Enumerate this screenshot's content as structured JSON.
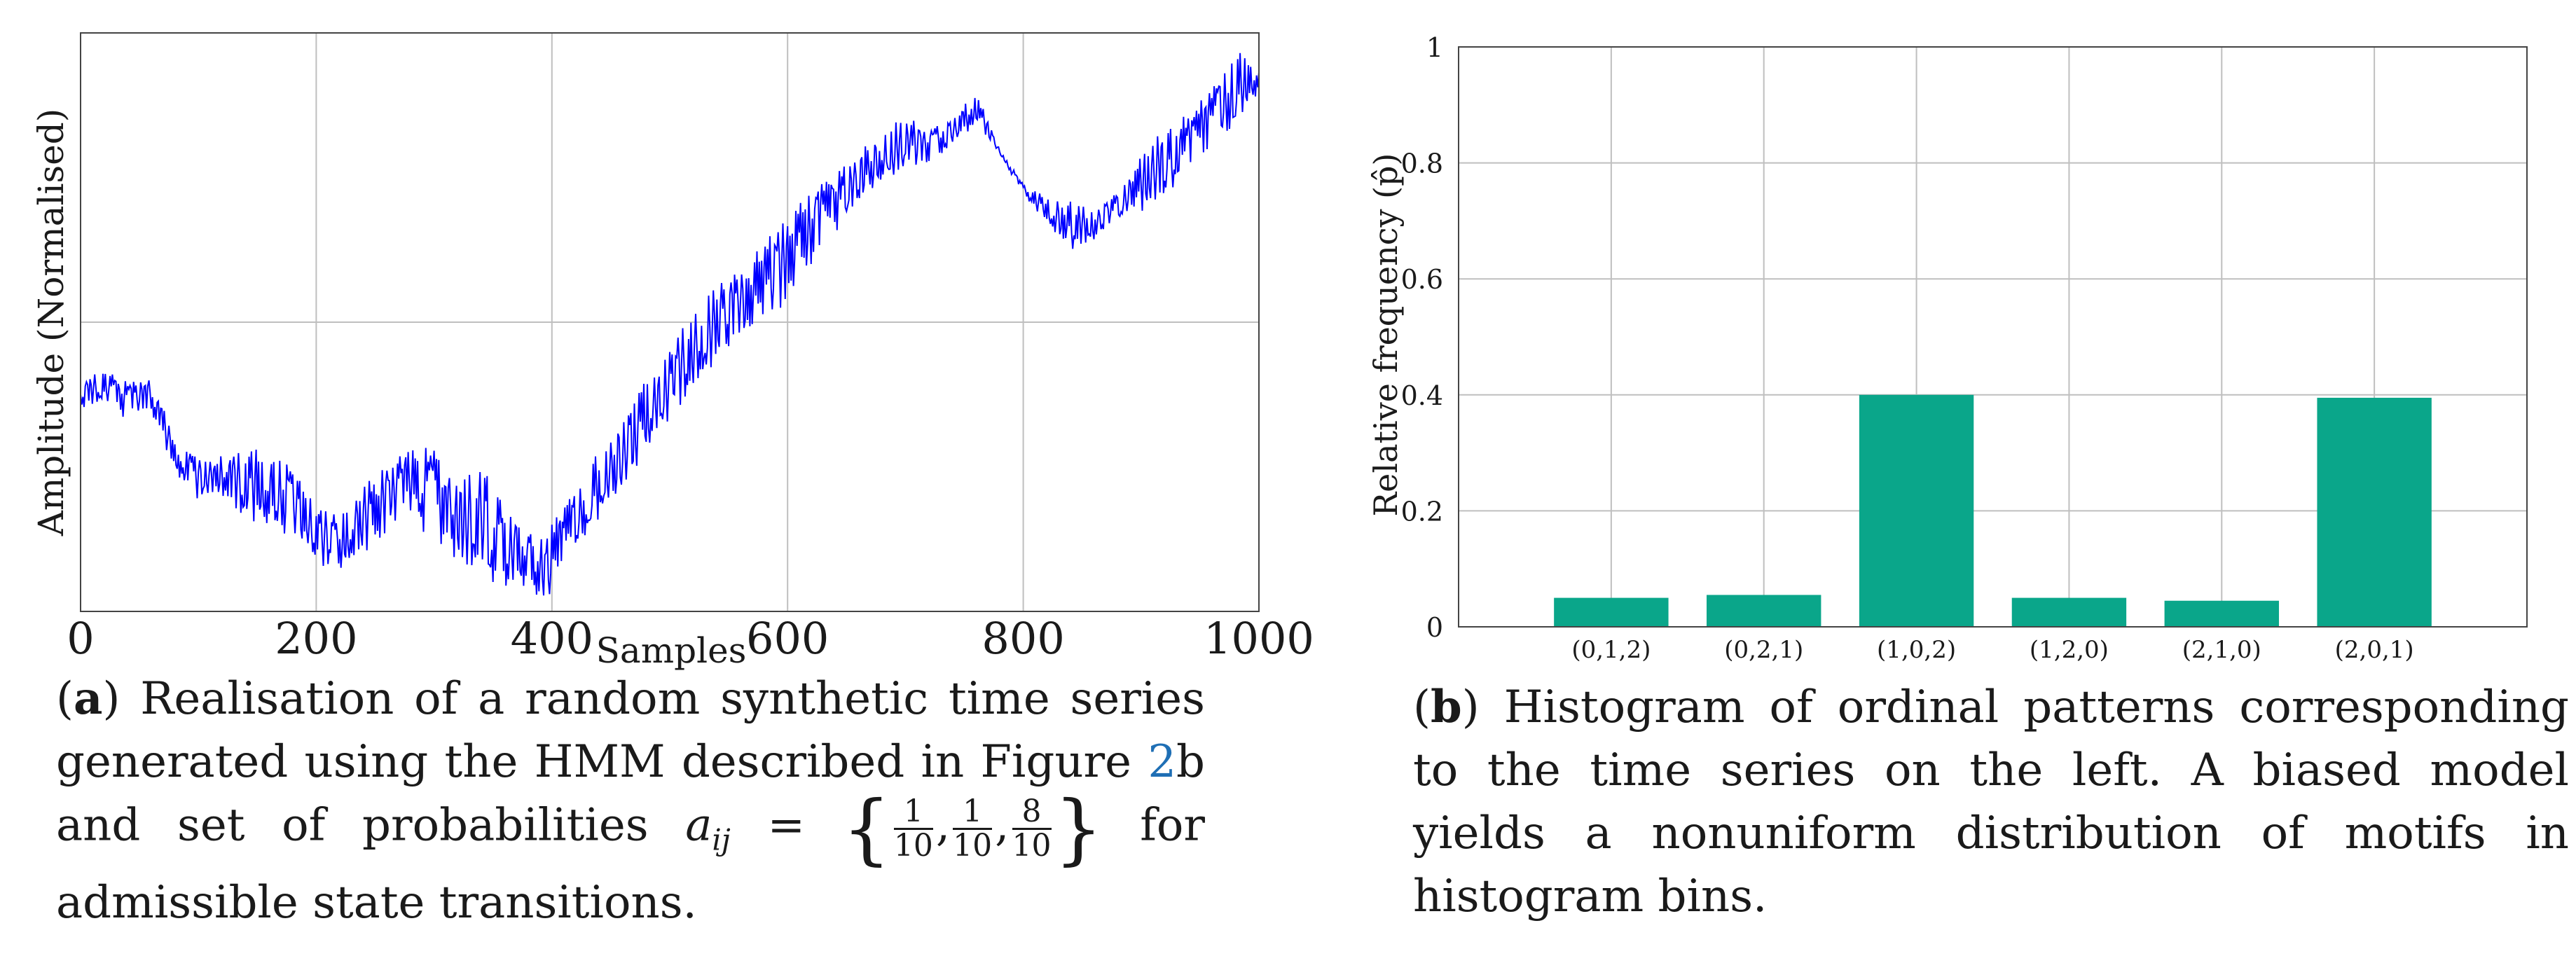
{
  "colors": {
    "line": "#0000ff",
    "bar": "#0aa68a",
    "grid": "#bfbfbf",
    "axis": "#444444"
  },
  "chart_data": [
    {
      "id": "a",
      "type": "line",
      "title": "",
      "xlabel": "Samples",
      "ylabel": "Amplitude (Normalised)",
      "xlim": [
        0,
        1000
      ],
      "ylim": [
        0,
        1
      ],
      "x_ticks": [
        "0",
        "200",
        "400",
        "600",
        "800",
        "1000"
      ],
      "grid": true,
      "envelope_x": [
        0,
        20,
        40,
        60,
        80,
        100,
        120,
        140,
        160,
        180,
        200,
        220,
        240,
        260,
        280,
        300,
        320,
        340,
        360,
        380,
        395,
        420,
        440,
        460,
        480,
        500,
        520,
        540,
        560,
        580,
        600,
        620,
        640,
        660,
        680,
        700,
        720,
        740,
        760,
        780,
        800,
        820,
        840,
        860,
        880,
        900,
        920,
        940,
        960,
        980,
        1000
      ],
      "envelope_lo": [
        0.35,
        0.36,
        0.33,
        0.34,
        0.24,
        0.19,
        0.2,
        0.15,
        0.14,
        0.12,
        0.08,
        0.07,
        0.1,
        0.13,
        0.17,
        0.11,
        0.09,
        0.05,
        0.02,
        0.04,
        0.0,
        0.1,
        0.16,
        0.2,
        0.27,
        0.33,
        0.38,
        0.43,
        0.46,
        0.5,
        0.53,
        0.6,
        0.65,
        0.7,
        0.74,
        0.76,
        0.77,
        0.8,
        0.84,
        0.79,
        0.72,
        0.67,
        0.62,
        0.64,
        0.67,
        0.69,
        0.71,
        0.75,
        0.79,
        0.83,
        0.9
      ],
      "envelope_hi": [
        0.4,
        0.42,
        0.4,
        0.41,
        0.3,
        0.27,
        0.27,
        0.29,
        0.29,
        0.26,
        0.19,
        0.17,
        0.22,
        0.26,
        0.29,
        0.29,
        0.23,
        0.27,
        0.2,
        0.15,
        0.14,
        0.22,
        0.29,
        0.34,
        0.41,
        0.46,
        0.52,
        0.57,
        0.6,
        0.64,
        0.68,
        0.74,
        0.76,
        0.8,
        0.83,
        0.86,
        0.84,
        0.86,
        0.9,
        0.8,
        0.74,
        0.72,
        0.71,
        0.7,
        0.73,
        0.79,
        0.84,
        0.86,
        0.91,
        0.98,
        0.95
      ]
    },
    {
      "id": "b",
      "type": "bar",
      "title": "",
      "xlabel": "",
      "ylabel": "Relative frequency (p̂)",
      "ylim": [
        0,
        1
      ],
      "y_ticks": [
        "0",
        "0.2",
        "0.4",
        "0.6",
        "0.8",
        "1"
      ],
      "categories": [
        "(0,1,2)",
        "(0,2,1)",
        "(1,0,2)",
        "(1,2,0)",
        "(2,1,0)",
        "(2,0,1)"
      ],
      "values": [
        0.05,
        0.055,
        0.4,
        0.05,
        0.045,
        0.395
      ],
      "grid": true
    }
  ],
  "captions": {
    "a": {
      "label": "a",
      "text1": "Realisation of a random synthetic time series generated using the HMM described in Figure ",
      "ref": "2",
      "text2": "b and set of probabilities ",
      "math_var": "a",
      "math_sub": "ij",
      "math_eq": " = ",
      "brace_open": "{",
      "fracs": [
        {
          "num": "1",
          "den": "10"
        },
        {
          "num": "1",
          "den": "10"
        },
        {
          "num": "8",
          "den": "10"
        }
      ],
      "brace_close": "}",
      "text3": " for admissible state transitions."
    },
    "b": {
      "label": "b",
      "text": "Histogram of ordinal patterns corresponding to the time series on the left. A biased model yields a nonuniform distribution of motifs in histogram bins."
    }
  }
}
